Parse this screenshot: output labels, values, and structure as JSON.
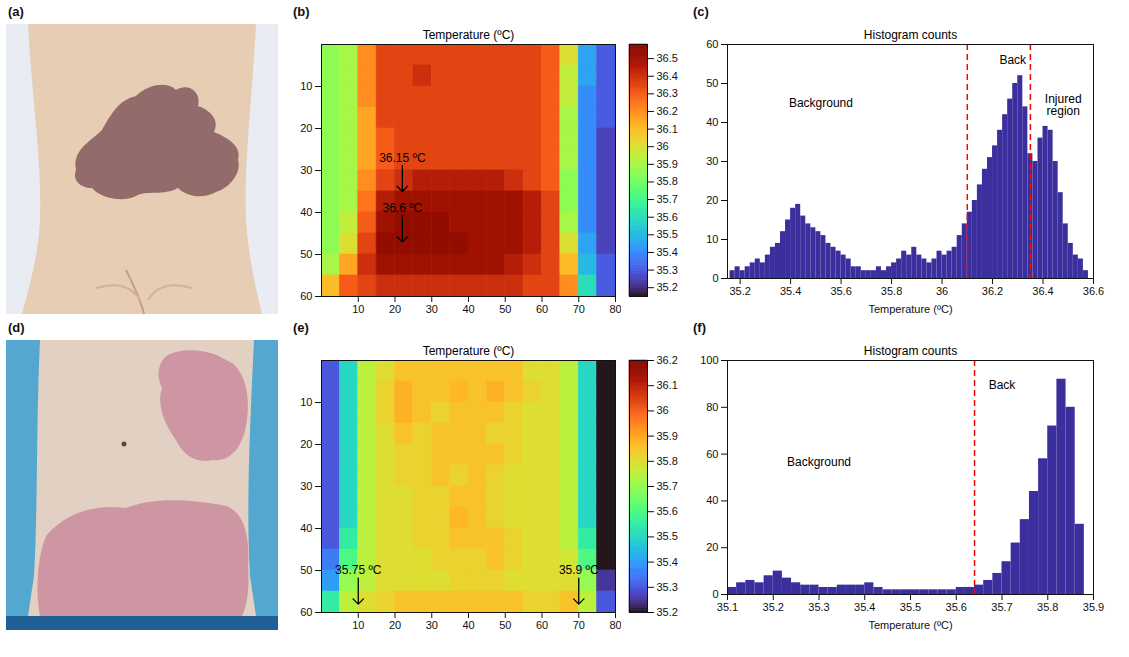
{
  "chart_data": [
    {
      "type": "image",
      "panel": "(a)"
    },
    {
      "type": "heatmap",
      "panel": "(b)",
      "title": "Temperature (ºC)",
      "xlim": [
        0,
        80
      ],
      "ylim": [
        0,
        60
      ],
      "xticks": [
        10,
        20,
        30,
        40,
        50,
        60,
        70,
        80
      ],
      "yticks": [
        10,
        20,
        30,
        40,
        50,
        60
      ],
      "x": [
        2.5,
        7.5,
        12.5,
        17.5,
        22.5,
        27.5,
        32.5,
        37.5,
        42.5,
        47.5,
        52.5,
        57.5,
        62.5,
        67.5,
        72.5,
        77.5
      ],
      "y": [
        2.5,
        7.5,
        12.5,
        17.5,
        22.5,
        27.5,
        32.5,
        37.5,
        42.5,
        47.5,
        52.5,
        57.5
      ],
      "cells": [
        [
          35.85,
          35.9,
          36.2,
          36.35,
          36.35,
          36.35,
          36.35,
          36.35,
          36.35,
          36.35,
          36.35,
          36.35,
          36.3,
          36.0,
          35.45,
          35.3
        ],
        [
          35.85,
          35.9,
          36.2,
          36.35,
          36.35,
          36.4,
          36.35,
          36.35,
          36.35,
          36.35,
          36.35,
          36.35,
          36.3,
          35.95,
          35.45,
          35.3
        ],
        [
          35.85,
          35.9,
          36.2,
          36.35,
          36.35,
          36.35,
          36.35,
          36.35,
          36.35,
          36.35,
          36.35,
          36.35,
          36.3,
          35.95,
          35.4,
          35.3
        ],
        [
          35.85,
          35.9,
          36.15,
          36.35,
          36.35,
          36.35,
          36.35,
          36.35,
          36.35,
          36.35,
          36.35,
          36.35,
          36.3,
          35.9,
          35.4,
          35.3
        ],
        [
          35.85,
          35.9,
          36.15,
          36.3,
          36.35,
          36.35,
          36.35,
          36.35,
          36.35,
          36.35,
          36.35,
          36.35,
          36.3,
          35.9,
          35.4,
          35.25
        ],
        [
          35.85,
          35.9,
          36.15,
          36.3,
          36.35,
          36.35,
          36.35,
          36.35,
          36.35,
          36.35,
          36.35,
          36.35,
          36.3,
          35.9,
          35.4,
          35.25
        ],
        [
          35.85,
          35.9,
          36.2,
          36.35,
          36.4,
          36.45,
          36.45,
          36.45,
          36.45,
          36.45,
          36.4,
          36.35,
          36.3,
          35.85,
          35.4,
          35.25
        ],
        [
          35.85,
          35.9,
          36.25,
          36.45,
          36.5,
          36.5,
          36.5,
          36.5,
          36.5,
          36.5,
          36.5,
          36.45,
          36.35,
          35.85,
          35.4,
          35.25
        ],
        [
          35.85,
          35.95,
          36.3,
          36.5,
          36.55,
          36.55,
          36.55,
          36.5,
          36.5,
          36.5,
          36.5,
          36.45,
          36.35,
          35.9,
          35.4,
          35.25
        ],
        [
          35.85,
          36.0,
          36.35,
          36.55,
          36.55,
          36.55,
          36.55,
          36.55,
          36.5,
          36.5,
          36.5,
          36.45,
          36.35,
          36.0,
          35.45,
          35.25
        ],
        [
          35.9,
          36.15,
          36.4,
          36.5,
          36.5,
          36.5,
          36.5,
          36.5,
          36.5,
          36.5,
          36.45,
          36.4,
          36.35,
          36.1,
          35.5,
          35.3
        ],
        [
          36.1,
          36.3,
          36.35,
          36.4,
          36.4,
          36.4,
          36.4,
          36.4,
          36.4,
          36.4,
          36.4,
          36.35,
          36.35,
          36.2,
          35.6,
          35.3
        ]
      ],
      "colorbar": {
        "lim": [
          35.15,
          36.58
        ],
        "ticks": [
          35.2,
          35.3,
          35.4,
          35.5,
          35.6,
          35.7,
          35.8,
          35.9,
          36,
          36.1,
          36.2,
          36.3,
          36.4,
          36.5
        ]
      },
      "annotations": [
        {
          "text": "36.15 ºC",
          "x": 22,
          "y": 35
        },
        {
          "text": "36.6 ºC",
          "x": 22,
          "y": 47
        }
      ]
    },
    {
      "type": "histogram",
      "panel": "(c)",
      "title": "Histogram counts",
      "xlabel": "Temperature (ºC)",
      "color": "#3b2f9e",
      "xlim": [
        35.15,
        36.6
      ],
      "ylim": [
        0,
        60
      ],
      "xticks": [
        35.2,
        35.4,
        35.6,
        35.8,
        36,
        36.2,
        36.4,
        36.6
      ],
      "yticks": [
        0,
        10,
        20,
        30,
        40,
        50,
        60
      ],
      "bins": [
        35.16,
        35.18,
        35.2,
        35.22,
        35.24,
        35.26,
        35.28,
        35.3,
        35.32,
        35.34,
        35.36,
        35.38,
        35.4,
        35.42,
        35.44,
        35.46,
        35.48,
        35.5,
        35.52,
        35.54,
        35.56,
        35.58,
        35.6,
        35.62,
        35.64,
        35.66,
        35.68,
        35.7,
        35.72,
        35.74,
        35.76,
        35.78,
        35.8,
        35.82,
        35.84,
        35.86,
        35.88,
        35.9,
        35.92,
        35.94,
        35.96,
        35.98,
        36,
        36.02,
        36.04,
        36.06,
        36.08,
        36.1,
        36.12,
        36.14,
        36.16,
        36.18,
        36.2,
        36.22,
        36.24,
        36.26,
        36.28,
        36.3,
        36.32,
        36.34,
        36.36,
        36.38,
        36.4,
        36.42,
        36.44,
        36.46,
        36.48,
        36.5,
        36.52,
        36.54,
        36.56,
        36.58
      ],
      "counts": [
        2,
        3,
        2,
        3,
        4,
        5,
        4,
        6,
        8,
        9,
        12,
        15,
        18,
        19,
        16,
        14,
        13,
        12,
        11,
        9,
        8,
        7,
        6,
        5,
        3,
        3,
        2,
        2,
        2,
        3,
        2,
        3,
        4,
        5,
        7,
        6,
        8,
        6,
        5,
        4,
        5,
        7,
        6,
        7,
        8,
        11,
        14,
        17,
        20,
        24,
        28,
        31,
        34,
        38,
        42,
        46,
        50,
        52,
        44,
        32,
        30,
        36,
        39,
        38,
        30,
        22,
        14,
        9,
        6,
        5,
        2
      ],
      "thresholds": [
        36.1,
        36.35
      ],
      "annotations": [
        {
          "text": "Background",
          "x": 35.52,
          "y": 44
        },
        {
          "text": "Back",
          "x": 36.28,
          "y": 55
        },
        {
          "text": "Injured region",
          "x": 36.48,
          "y": 42
        }
      ]
    },
    {
      "type": "image",
      "panel": "(d)"
    },
    {
      "type": "heatmap",
      "panel": "(e)",
      "title": "Temperature (ºC)",
      "xlim": [
        0,
        80
      ],
      "ylim": [
        0,
        60
      ],
      "xticks": [
        10,
        20,
        30,
        40,
        50,
        60,
        70,
        80
      ],
      "yticks": [
        10,
        20,
        30,
        40,
        50,
        60
      ],
      "x": [
        2.5,
        7.5,
        12.5,
        17.5,
        22.5,
        27.5,
        32.5,
        37.5,
        42.5,
        47.5,
        52.5,
        57.5,
        62.5,
        67.5,
        72.5,
        77.5
      ],
      "y": [
        2.5,
        7.5,
        12.5,
        17.5,
        22.5,
        27.5,
        32.5,
        37.5,
        42.5,
        47.5,
        52.5,
        57.5
      ],
      "cells": [
        [
          35.3,
          35.5,
          35.75,
          35.8,
          35.85,
          35.85,
          35.85,
          35.85,
          35.85,
          35.85,
          35.85,
          35.8,
          35.8,
          35.75,
          35.5,
          35.2
        ],
        [
          35.3,
          35.5,
          35.75,
          35.82,
          35.88,
          35.85,
          35.85,
          35.87,
          35.85,
          35.88,
          35.85,
          35.82,
          35.8,
          35.75,
          35.5,
          35.2
        ],
        [
          35.3,
          35.5,
          35.75,
          35.82,
          35.88,
          35.85,
          35.82,
          35.85,
          35.85,
          35.85,
          35.82,
          35.8,
          35.8,
          35.75,
          35.5,
          35.2
        ],
        [
          35.3,
          35.5,
          35.75,
          35.8,
          35.85,
          35.82,
          35.85,
          35.85,
          35.85,
          35.82,
          35.82,
          35.8,
          35.8,
          35.75,
          35.5,
          35.2
        ],
        [
          35.3,
          35.5,
          35.75,
          35.8,
          35.82,
          35.82,
          35.85,
          35.85,
          35.85,
          35.85,
          35.82,
          35.8,
          35.8,
          35.75,
          35.5,
          35.2
        ],
        [
          35.3,
          35.5,
          35.75,
          35.8,
          35.82,
          35.82,
          35.85,
          35.82,
          35.85,
          35.82,
          35.8,
          35.8,
          35.8,
          35.75,
          35.5,
          35.2
        ],
        [
          35.3,
          35.5,
          35.75,
          35.8,
          35.8,
          35.82,
          35.82,
          35.85,
          35.85,
          35.82,
          35.8,
          35.8,
          35.8,
          35.75,
          35.5,
          35.2
        ],
        [
          35.3,
          35.5,
          35.75,
          35.8,
          35.8,
          35.82,
          35.82,
          35.87,
          35.85,
          35.82,
          35.8,
          35.8,
          35.8,
          35.75,
          35.5,
          35.2
        ],
        [
          35.3,
          35.55,
          35.75,
          35.8,
          35.8,
          35.82,
          35.82,
          35.85,
          35.85,
          35.85,
          35.82,
          35.8,
          35.8,
          35.75,
          35.55,
          35.2
        ],
        [
          35.35,
          35.6,
          35.75,
          35.8,
          35.8,
          35.8,
          35.82,
          35.82,
          35.82,
          35.85,
          35.82,
          35.8,
          35.8,
          35.78,
          35.6,
          35.2
        ],
        [
          35.4,
          35.7,
          35.75,
          35.8,
          35.8,
          35.8,
          35.8,
          35.82,
          35.82,
          35.82,
          35.8,
          35.8,
          35.8,
          35.8,
          35.7,
          35.25
        ],
        [
          35.55,
          35.75,
          35.8,
          35.82,
          35.85,
          35.85,
          35.85,
          35.85,
          35.85,
          35.85,
          35.85,
          35.82,
          35.82,
          35.85,
          35.75,
          35.3
        ]
      ],
      "colorbar": {
        "lim": [
          35.2,
          36.2
        ],
        "ticks": [
          35.2,
          35.3,
          35.4,
          35.5,
          35.6,
          35.7,
          35.8,
          35.9,
          36,
          36.1,
          36.2
        ]
      },
      "annotations": [
        {
          "text": "35.75 ºC",
          "x": 10,
          "y": 58
        },
        {
          "text": "35.9 ºC",
          "x": 70,
          "y": 58
        }
      ]
    },
    {
      "type": "histogram",
      "panel": "(f)",
      "title": "Histogram counts",
      "xlabel": "Temperature (ºC)",
      "color": "#3b2f9e",
      "xlim": [
        35.1,
        35.9
      ],
      "ylim": [
        0,
        100
      ],
      "xticks": [
        35.1,
        35.2,
        35.3,
        35.4,
        35.5,
        35.6,
        35.7,
        35.8,
        35.9
      ],
      "yticks": [
        0,
        20,
        40,
        60,
        80,
        100
      ],
      "bins": [
        35.1,
        35.12,
        35.14,
        35.16,
        35.18,
        35.2,
        35.22,
        35.24,
        35.26,
        35.28,
        35.3,
        35.32,
        35.34,
        35.36,
        35.38,
        35.4,
        35.42,
        35.44,
        35.46,
        35.48,
        35.5,
        35.52,
        35.54,
        35.56,
        35.58,
        35.6,
        35.62,
        35.64,
        35.66,
        35.68,
        35.7,
        35.72,
        35.74,
        35.76,
        35.78,
        35.8,
        35.82,
        35.84,
        35.86,
        35.88
      ],
      "counts": [
        3,
        5,
        6,
        5,
        8,
        10,
        7,
        5,
        4,
        4,
        3,
        3,
        4,
        4,
        4,
        5,
        3,
        2,
        2,
        2,
        2,
        2,
        2,
        2,
        2,
        3,
        3,
        4,
        6,
        9,
        14,
        22,
        32,
        44,
        58,
        72,
        92,
        80,
        30
      ],
      "thresholds": [
        35.64
      ],
      "annotations": [
        {
          "text": "Background",
          "x": 35.3,
          "y": 55
        },
        {
          "text": "Back",
          "x": 35.7,
          "y": 88
        }
      ]
    }
  ]
}
